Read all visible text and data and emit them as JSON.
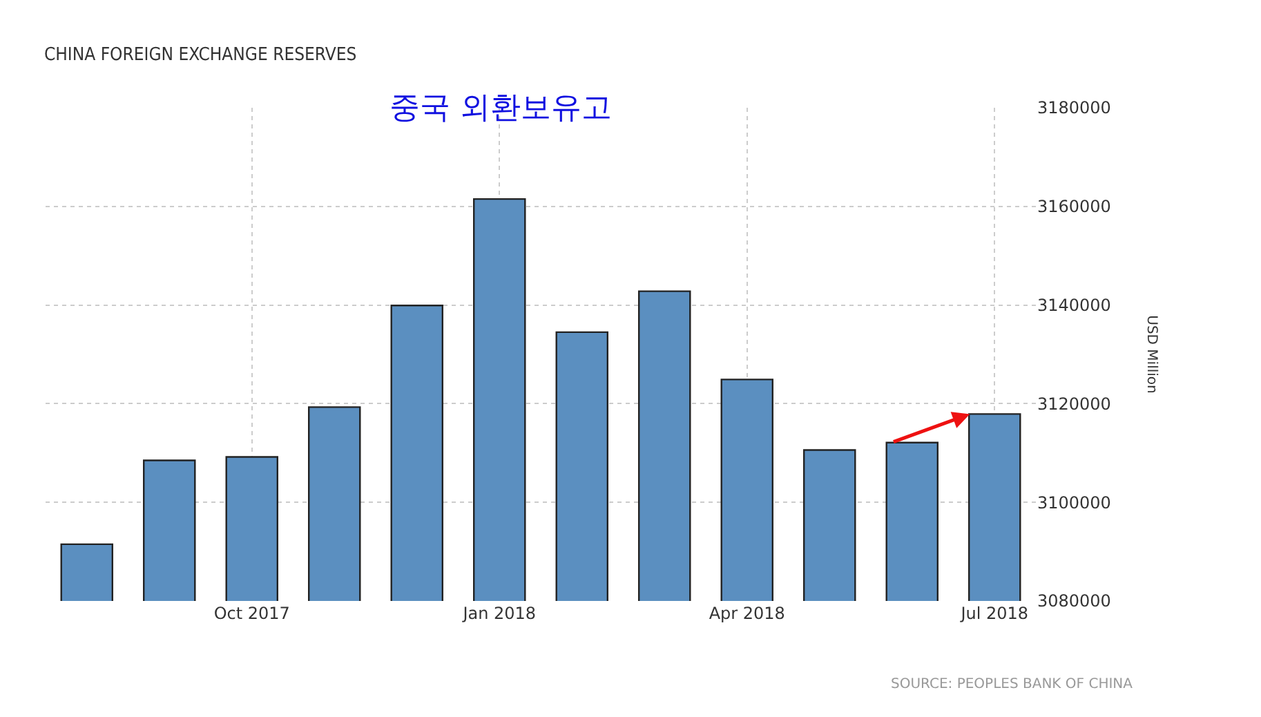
{
  "chart_data": {
    "type": "bar",
    "title": "CHINA FOREIGN EXCHANGE RESERVES",
    "subtitle": "중국 외환보유고",
    "ylabel": "USD Million",
    "categories": [
      null,
      null,
      "Oct 2017",
      null,
      null,
      "Jan 2018",
      null,
      null,
      "Apr 2018",
      null,
      null,
      "Jul 2018"
    ],
    "values": [
      3091500,
      3108500,
      3109200,
      3119300,
      3139900,
      3161500,
      3134500,
      3142800,
      3124900,
      3110600,
      3112100,
      3117900
    ],
    "color": "#5b8fc0",
    "ylim": [
      3080000,
      3180000
    ],
    "yticks": [
      3080000,
      3100000,
      3120000,
      3140000,
      3160000,
      3180000
    ],
    "grid": true,
    "annotations": [
      "SOURCE: PEOPLES BANK OF CHINA"
    ]
  }
}
